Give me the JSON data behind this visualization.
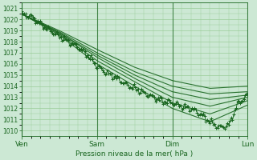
{
  "title": "Pression niveau de la mer( hPa )",
  "ylabel_ticks": [
    1010,
    1011,
    1012,
    1013,
    1014,
    1015,
    1016,
    1017,
    1018,
    1019,
    1020,
    1021
  ],
  "ylim": [
    1009.5,
    1021.5
  ],
  "xlim": [
    0,
    72
  ],
  "x_ticks": [
    0,
    24,
    48,
    72
  ],
  "x_labels": [
    "Ven",
    "Sam",
    "Dim",
    "Lun"
  ],
  "bg_color": "#cce8d4",
  "plot_bg": "#cce8d4",
  "grid_color": "#99cc99",
  "line_color": "#1a6620",
  "n_hours": 73,
  "forecast_lines": [
    {
      "key_t": [
        0,
        12,
        24,
        36,
        48,
        60,
        72
      ],
      "key_y": [
        1020.5,
        1018.8,
        1016.8,
        1015.0,
        1013.5,
        1012.8,
        1013.2
      ]
    },
    {
      "key_t": [
        0,
        12,
        24,
        36,
        48,
        60,
        72
      ],
      "key_y": [
        1020.5,
        1018.8,
        1016.6,
        1014.7,
        1013.0,
        1012.2,
        1013.0
      ]
    },
    {
      "key_t": [
        0,
        12,
        24,
        36,
        48,
        60,
        72
      ],
      "key_y": [
        1020.5,
        1018.9,
        1017.0,
        1015.3,
        1014.0,
        1013.3,
        1013.5
      ]
    },
    {
      "key_t": [
        0,
        12,
        24,
        36,
        48,
        60,
        72
      ],
      "key_y": [
        1020.5,
        1018.7,
        1016.3,
        1014.4,
        1012.5,
        1011.5,
        1012.7
      ]
    },
    {
      "key_t": [
        0,
        12,
        24,
        36,
        48,
        60,
        72
      ],
      "key_y": [
        1020.5,
        1019.0,
        1017.3,
        1015.7,
        1014.5,
        1013.8,
        1014.0
      ]
    },
    {
      "key_t": [
        0,
        12,
        24,
        36,
        48,
        60,
        72
      ],
      "key_y": [
        1020.5,
        1018.6,
        1016.0,
        1014.0,
        1012.0,
        1010.8,
        1012.3
      ]
    }
  ],
  "noisy_key_t": [
    0,
    3,
    6,
    9,
    12,
    15,
    18,
    21,
    24,
    27,
    30,
    33,
    36,
    39,
    42,
    45,
    48,
    51,
    54,
    57,
    60,
    63,
    66,
    69,
    72
  ],
  "noisy_key_y": [
    1020.5,
    1020.3,
    1019.6,
    1019.0,
    1018.5,
    1018.0,
    1017.5,
    1016.8,
    1015.8,
    1015.2,
    1014.8,
    1014.2,
    1013.8,
    1013.4,
    1013.0,
    1012.7,
    1012.5,
    1012.2,
    1012.0,
    1011.5,
    1010.8,
    1010.3,
    1010.5,
    1012.5,
    1013.2
  ]
}
